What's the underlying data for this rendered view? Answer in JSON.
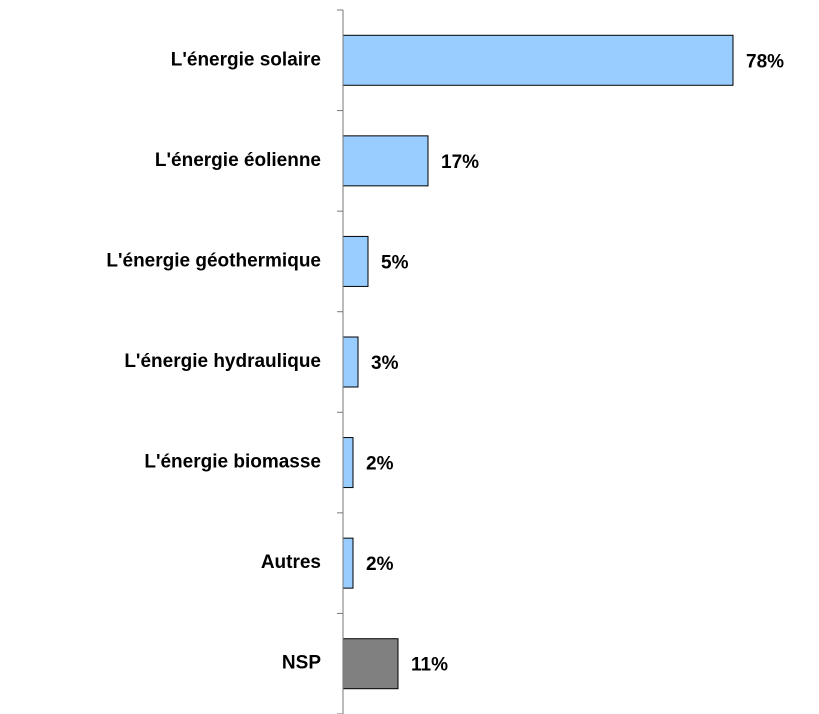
{
  "chart_data": {
    "type": "bar",
    "orientation": "horizontal",
    "categories": [
      "L'énergie solaire",
      "L'énergie éolienne",
      "L'énergie géothermique",
      "L'énergie hydraulique",
      "L'énergie biomasse",
      "Autres",
      "NSP"
    ],
    "values": [
      78,
      17,
      5,
      3,
      2,
      2,
      11
    ],
    "value_labels": [
      "78%",
      "17%",
      "5%",
      "3%",
      "2%",
      "2%",
      "11%"
    ],
    "colors": [
      "#99ccff",
      "#99ccff",
      "#99ccff",
      "#99ccff",
      "#99ccff",
      "#99ccff",
      "#808080"
    ]
  }
}
